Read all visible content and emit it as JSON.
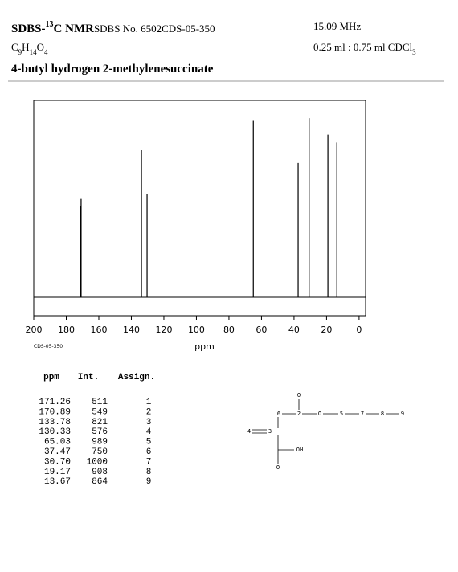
{
  "header": {
    "title_prefix": "SDBS-",
    "title_sup": "13",
    "title_suffix": "C NMR",
    "sdbs_no": "SDBS No. 6502",
    "code": "CDS-05-350",
    "frequency": "15.09 MHz",
    "solvent": "0.25 ml : 0.75 ml CDCl",
    "solvent_sub": "3",
    "formula": [
      "C",
      "9",
      "H",
      "14",
      "O",
      "4"
    ],
    "name": "4-butyl hydrogen 2-methylenesuccinate"
  },
  "chart_data": {
    "type": "spectrum",
    "code": "CDS-05-350",
    "x_label": "ppm",
    "x": [
      171.26,
      170.89,
      133.78,
      130.33,
      65.03,
      37.47,
      30.7,
      19.17,
      13.67
    ],
    "values": [
      511,
      549,
      821,
      576,
      989,
      750,
      1000,
      908,
      864
    ],
    "color": "#000000",
    "xlim": [
      200,
      -4
    ],
    "xticks": [
      200,
      180,
      160,
      140,
      120,
      100,
      80,
      60,
      40,
      20,
      0
    ],
    "ylim": [
      -103,
      1099
    ]
  },
  "table": {
    "headers": [
      "ppm",
      "Int.",
      "Assign."
    ],
    "rows": [
      [
        "171.26",
        "511",
        "1"
      ],
      [
        "170.89",
        "549",
        "2"
      ],
      [
        "133.78",
        "821",
        "3"
      ],
      [
        "130.33",
        "576",
        "4"
      ],
      [
        "65.03",
        "989",
        "5"
      ],
      [
        "37.47",
        "750",
        "6"
      ],
      [
        "30.70",
        "1000",
        "7"
      ],
      [
        "19.17",
        "908",
        "8"
      ],
      [
        "13.67",
        "864",
        "9"
      ]
    ]
  },
  "structure": {
    "atoms": [
      "O",
      "6",
      "2",
      "O",
      "5",
      "7",
      "8",
      "9",
      "4",
      "3",
      "OH",
      "O"
    ]
  }
}
